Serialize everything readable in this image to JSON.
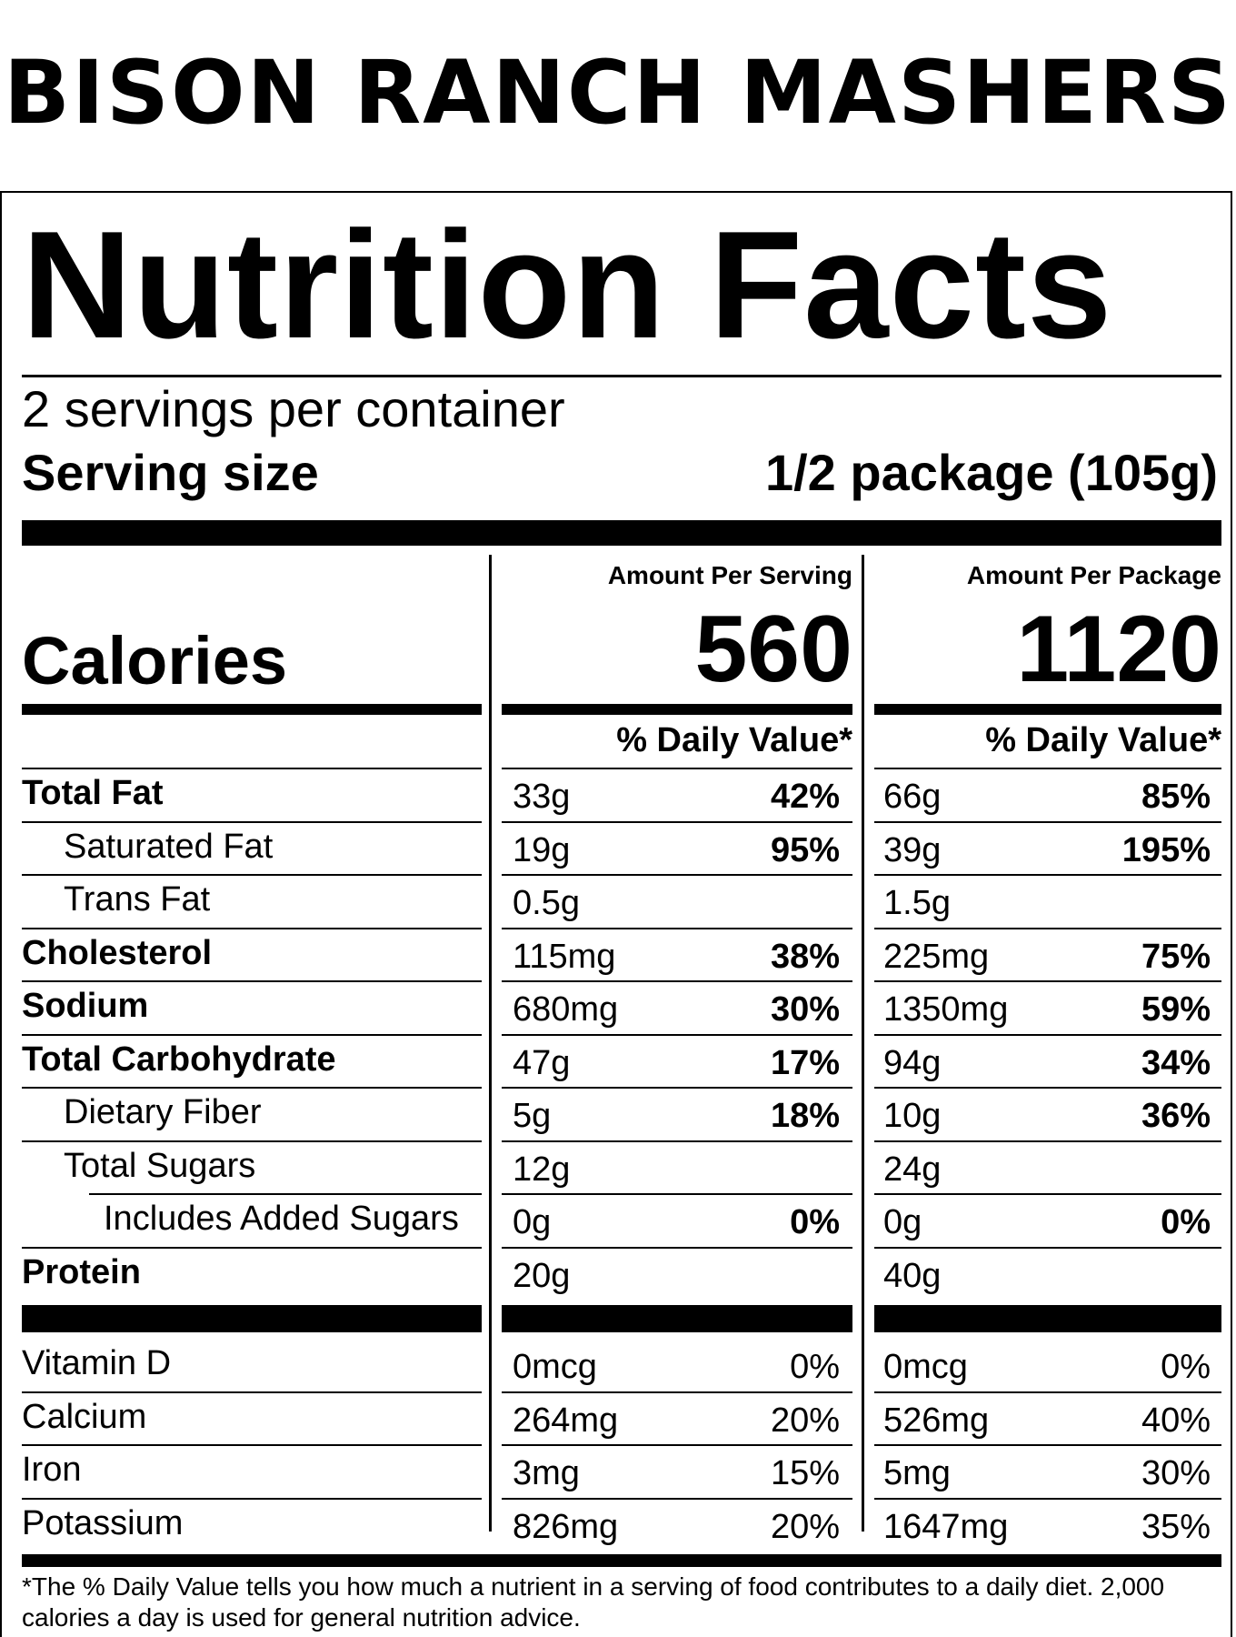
{
  "product_name": "BISON RANCH MASHERS",
  "label_title": "Nutrition Facts",
  "servings_per_container": "2 servings per container",
  "serving_size": {
    "label": "Serving size",
    "value": "1/2 package (105g)"
  },
  "columns": {
    "per_serving_header": "Amount Per Serving",
    "per_package_header": "Amount Per Package"
  },
  "calories": {
    "label": "Calories",
    "per_serving": "560",
    "per_package": "1120"
  },
  "daily_value_header": "% Daily Value*",
  "nutrients": [
    {
      "name": "Total Fat",
      "bold": true,
      "indent": 0,
      "serving_amount": "33g",
      "serving_dv": "42%",
      "package_amount": "66g",
      "package_dv": "85%",
      "dv_bold": true
    },
    {
      "name": "Saturated Fat",
      "bold": false,
      "indent": 1,
      "serving_amount": "19g",
      "serving_dv": "95%",
      "package_amount": "39g",
      "package_dv": "195%",
      "dv_bold": true
    },
    {
      "name": "Trans Fat",
      "bold": false,
      "indent": 1,
      "serving_amount": "0.5g",
      "serving_dv": "",
      "package_amount": "1.5g",
      "package_dv": "",
      "dv_bold": true
    },
    {
      "name": "Cholesterol",
      "bold": true,
      "indent": 0,
      "serving_amount": "115mg",
      "serving_dv": "38%",
      "package_amount": "225mg",
      "package_dv": "75%",
      "dv_bold": true
    },
    {
      "name": "Sodium",
      "bold": true,
      "indent": 0,
      "serving_amount": "680mg",
      "serving_dv": "30%",
      "package_amount": "1350mg",
      "package_dv": "59%",
      "dv_bold": true
    },
    {
      "name": "Total Carbohydrate",
      "bold": true,
      "indent": 0,
      "serving_amount": "47g",
      "serving_dv": "17%",
      "package_amount": "94g",
      "package_dv": "34%",
      "dv_bold": true
    },
    {
      "name": "Dietary Fiber",
      "bold": false,
      "indent": 1,
      "serving_amount": "5g",
      "serving_dv": "18%",
      "package_amount": "10g",
      "package_dv": "36%",
      "dv_bold": true
    },
    {
      "name": "Total Sugars",
      "bold": false,
      "indent": 1,
      "serving_amount": "12g",
      "serving_dv": "",
      "package_amount": "24g",
      "package_dv": "",
      "dv_bold": true
    },
    {
      "name": "Includes Added Sugars",
      "bold": false,
      "indent": 2,
      "serving_amount": "0g",
      "serving_dv": "0%",
      "package_amount": "0g",
      "package_dv": "0%",
      "dv_bold": true
    },
    {
      "name": "Protein",
      "bold": true,
      "indent": 0,
      "serving_amount": "20g",
      "serving_dv": "",
      "package_amount": "40g",
      "package_dv": "",
      "dv_bold": true
    }
  ],
  "vitamins": [
    {
      "name": "Vitamin D",
      "serving_amount": "0mcg",
      "serving_dv": "0%",
      "package_amount": "0mcg",
      "package_dv": "0%"
    },
    {
      "name": "Calcium",
      "serving_amount": "264mg",
      "serving_dv": "20%",
      "package_amount": "526mg",
      "package_dv": "40%"
    },
    {
      "name": "Iron",
      "serving_amount": "3mg",
      "serving_dv": "15%",
      "package_amount": "5mg",
      "package_dv": "30%"
    },
    {
      "name": "Potassium",
      "serving_amount": "826mg",
      "serving_dv": "20%",
      "package_amount": "1647mg",
      "package_dv": "35%"
    }
  ],
  "footnote": "*The % Daily Value tells you how much a nutrient in a serving of food contributes to a daily diet. 2,000 calories a day is used for general nutrition advice."
}
